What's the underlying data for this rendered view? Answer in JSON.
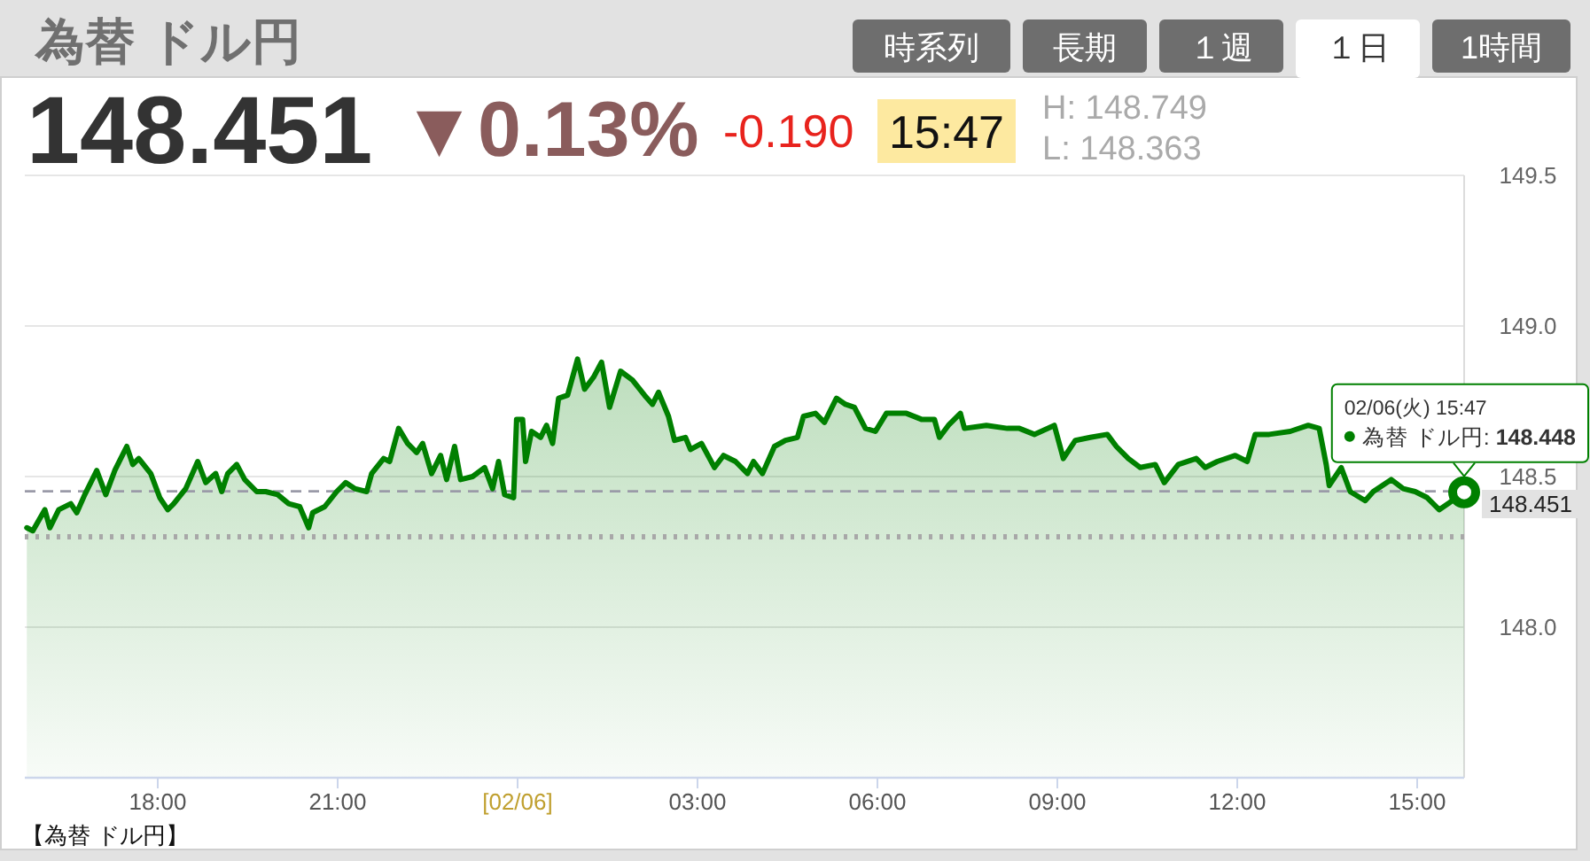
{
  "chart_data": {
    "type": "area",
    "title": "為替 ドル円",
    "x": [
      "--02-05T15:49",
      "--02-05T15:55",
      "--02-05T16:07",
      "--02-05T16:12",
      "--02-05T16:21",
      "--02-05T16:33",
      "--02-05T16:39",
      "--02-05T16:47",
      "--02-05T16:59",
      "--02-05T17:08",
      "--02-05T17:17",
      "--02-05T17:29",
      "--02-05T17:35",
      "--02-05T17:41",
      "--02-05T17:53",
      "--02-05T18:02",
      "--02-05T18:10",
      "--02-05T18:16",
      "--02-05T18:28",
      "--02-05T18:40",
      "--02-05T18:48",
      "--02-05T18:58",
      "--02-05T19:04",
      "--02-05T19:10",
      "--02-05T19:19",
      "--02-05T19:27",
      "--02-05T19:39",
      "--02-05T19:48",
      "--02-05T20:00",
      "--02-05T20:11",
      "--02-05T20:22",
      "--02-05T20:31",
      "--02-05T20:35",
      "--02-05T20:47",
      "--02-05T20:59",
      "--02-05T21:08",
      "--02-05T21:17",
      "--02-05T21:29",
      "--02-05T21:34",
      "--02-05T21:46",
      "--02-05T21:52",
      "--02-05T22:01",
      "--02-05T22:10",
      "--02-05T22:19",
      "--02-05T22:25",
      "--02-05T22:34",
      "--02-05T22:43",
      "--02-05T22:49",
      "--02-05T22:57",
      "--02-05T23:03",
      "--02-05T23:15",
      "--02-05T23:27",
      "--02-05T23:35",
      "--02-05T23:41",
      "--02-05T23:47",
      "--02-05T23:56",
      "--02-05T23:59",
      "--02-06T00:05",
      "--02-06T00:08",
      "--02-06T00:14",
      "--02-06T00:23",
      "--02-06T00:29",
      "--02-06T00:35",
      "--02-06T00:41",
      "--02-06T00:50",
      "--02-06T01:00",
      "--02-06T01:07",
      "--02-06T01:16",
      "--02-06T01:24",
      "--02-06T01:32",
      "--02-06T01:43",
      "--02-06T01:55",
      "--02-06T02:07",
      "--02-06T02:15",
      "--02-06T02:21",
      "--02-06T02:31",
      "--02-06T02:37",
      "--02-06T02:48",
      "--02-06T02:53",
      "--02-06T03:04",
      "--02-06T03:17",
      "--02-06T03:26",
      "--02-06T03:38",
      "--02-06T03:50",
      "--02-06T03:56",
      "--02-06T04:05",
      "--02-06T04:17",
      "--02-06T04:28",
      "--02-06T04:40",
      "--02-06T04:46",
      "--02-06T04:58",
      "--02-06T05:07",
      "--02-06T05:19",
      "--02-06T05:28",
      "--02-06T05:37",
      "--02-06T05:48",
      "--02-06T05:58",
      "--02-06T06:09",
      "--02-06T06:29",
      "--02-06T06:44",
      "--02-06T06:57",
      "--02-06T07:02",
      "--02-06T07:11",
      "--02-06T07:23",
      "--02-06T07:27",
      "--02-06T07:49",
      "--02-06T08:10",
      "--02-06T08:22",
      "--02-06T08:37",
      "--02-06T08:57",
      "--02-06T09:06",
      "--02-06T09:18",
      "--02-06T09:33",
      "--02-06T09:50",
      "--02-06T09:59",
      "--02-06T10:11",
      "--02-06T10:23",
      "--02-06T10:38",
      "--02-06T10:47",
      "--02-06T11:01",
      "--02-06T11:19",
      "--02-06T11:28",
      "--02-06T11:40",
      "--02-06T11:58",
      "--02-06T12:10",
      "--02-06T12:18",
      "--02-06T12:32",
      "--02-06T12:53",
      "--02-06T13:11",
      "--02-06T13:22",
      "--02-06T13:29",
      "--02-06T13:32",
      "--02-06T13:44",
      "--02-06T13:53",
      "--02-06T14:08",
      "--02-06T14:16",
      "--02-06T14:34",
      "--02-06T14:46",
      "--02-06T14:58",
      "--02-06T15:10",
      "--02-06T15:22",
      "--02-06T15:31",
      "--02-06T15:47"
    ],
    "series": [
      {
        "color": "#008000",
        "values": [
          148.33,
          148.32,
          148.39,
          148.33,
          148.39,
          148.41,
          148.38,
          148.44,
          148.52,
          148.44,
          148.52,
          148.6,
          148.54,
          148.56,
          148.51,
          148.43,
          148.39,
          148.41,
          148.46,
          148.55,
          148.48,
          148.51,
          148.45,
          148.51,
          148.54,
          148.49,
          148.45,
          148.45,
          148.44,
          148.41,
          148.4,
          148.33,
          148.38,
          148.4,
          148.45,
          148.48,
          148.46,
          148.45,
          148.51,
          148.56,
          148.55,
          148.66,
          148.61,
          148.58,
          148.61,
          148.51,
          148.57,
          148.49,
          148.6,
          148.49,
          148.5,
          148.53,
          148.46,
          148.55,
          148.44,
          148.43,
          148.69,
          148.69,
          148.55,
          148.65,
          148.63,
          148.67,
          148.61,
          148.76,
          148.77,
          148.89,
          148.79,
          148.83,
          148.88,
          148.73,
          148.85,
          148.82,
          148.77,
          148.74,
          148.78,
          148.7,
          148.62,
          148.63,
          148.59,
          148.61,
          148.53,
          148.57,
          148.55,
          148.51,
          148.55,
          148.51,
          148.6,
          148.62,
          148.63,
          148.7,
          148.71,
          148.68,
          148.76,
          148.74,
          148.73,
          148.66,
          148.65,
          148.71,
          148.71,
          148.69,
          148.69,
          148.63,
          148.67,
          148.71,
          148.66,
          148.67,
          148.66,
          148.66,
          148.64,
          148.67,
          148.56,
          148.62,
          148.63,
          148.64,
          148.6,
          148.56,
          148.53,
          148.54,
          148.48,
          148.54,
          148.56,
          148.53,
          148.55,
          148.57,
          148.55,
          148.64,
          148.64,
          148.65,
          148.67,
          148.66,
          148.54,
          148.47,
          148.53,
          148.45,
          148.42,
          148.45,
          148.49,
          148.46,
          148.45,
          148.43,
          148.39,
          148.41,
          148.451
        ]
      }
    ],
    "xlim": [
      "--02-05T15:47",
      "--02-06T15:47"
    ],
    "xticks": [
      {
        "value": "--02-05T18:00",
        "label": "18:00"
      },
      {
        "value": "--02-05T21:00",
        "label": "21:00"
      },
      {
        "value": "--02-06T00:00",
        "label": "[02/06]"
      },
      {
        "value": "--02-06T03:00",
        "label": "03:00"
      },
      {
        "value": "--02-06T06:00",
        "label": "06:00"
      },
      {
        "value": "--02-06T09:00",
        "label": "09:00"
      },
      {
        "value": "--02-06T12:00",
        "label": "12:00"
      },
      {
        "value": "--02-06T15:00",
        "label": "15:00"
      }
    ],
    "ylim": [
      147.5,
      149.5
    ],
    "yticks": [
      {
        "value": 148,
        "label": "148.0"
      },
      {
        "value": 148.5,
        "label": "148.5"
      },
      {
        "value": 149,
        "label": "149.0"
      },
      {
        "value": 149.5,
        "label": "149.5"
      }
    ],
    "grid": "y",
    "ref_lines": [
      {
        "axis": "y",
        "value": 148.451,
        "label": "148.451",
        "line_style": "dashed",
        "color": "#9a9aa8"
      },
      {
        "axis": "y",
        "value": 148.3,
        "line_style": "dotted",
        "color": "#a8a8a8"
      }
    ],
    "annotations": [
      "時系列",
      "長期",
      "１週",
      "１日",
      "1時間",
      "148.451",
      "▼0.13%",
      "-0.190",
      "15:47",
      "H: 148.749",
      "L: 148.363",
      "【為替 ドル円】",
      {
        "text": "02/06(火) 15:47\n為替 ドル円: **148.448**",
        "x": "--02-06T15:47",
        "y": 148.448
      }
    ]
  }
}
